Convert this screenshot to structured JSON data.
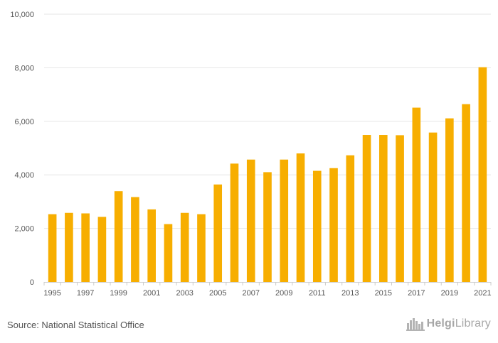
{
  "chart_data": {
    "type": "bar",
    "categories": [
      "1995",
      "1996",
      "1997",
      "1998",
      "1999",
      "2000",
      "2001",
      "2002",
      "2003",
      "2004",
      "2005",
      "2006",
      "2007",
      "2008",
      "2009",
      "2010",
      "2011",
      "2012",
      "2013",
      "2014",
      "2015",
      "2016",
      "2017",
      "2018",
      "2019",
      "2020",
      "2021"
    ],
    "values": [
      2530,
      2580,
      2560,
      2430,
      3390,
      3170,
      2710,
      2160,
      2580,
      2530,
      3640,
      4420,
      4570,
      4100,
      4570,
      4800,
      4150,
      4250,
      4730,
      5490,
      5490,
      5480,
      6510,
      5580,
      6110,
      6640,
      8020
    ],
    "x_tick_labels": [
      "1995",
      "1997",
      "1999",
      "2001",
      "2003",
      "2005",
      "2007",
      "2009",
      "2011",
      "2013",
      "2015",
      "2017",
      "2019",
      "2021"
    ],
    "y_ticks": [
      0,
      2000,
      4000,
      6000,
      8000,
      10000
    ],
    "y_tick_labels": [
      "0",
      "2,000",
      "4,000",
      "6,000",
      "8,000",
      "10,000"
    ],
    "ylim": [
      0,
      10000
    ],
    "title": "",
    "xlabel": "",
    "ylabel": "",
    "grid": true,
    "bar_color": "#f7ae00"
  },
  "footer": {
    "source": "Source: National Statistical Office",
    "brand_part1": "Helgi",
    "brand_part2": "Library",
    "brand_color": "#a7a7a7",
    "brand_icon": "city-skyline-icon"
  }
}
